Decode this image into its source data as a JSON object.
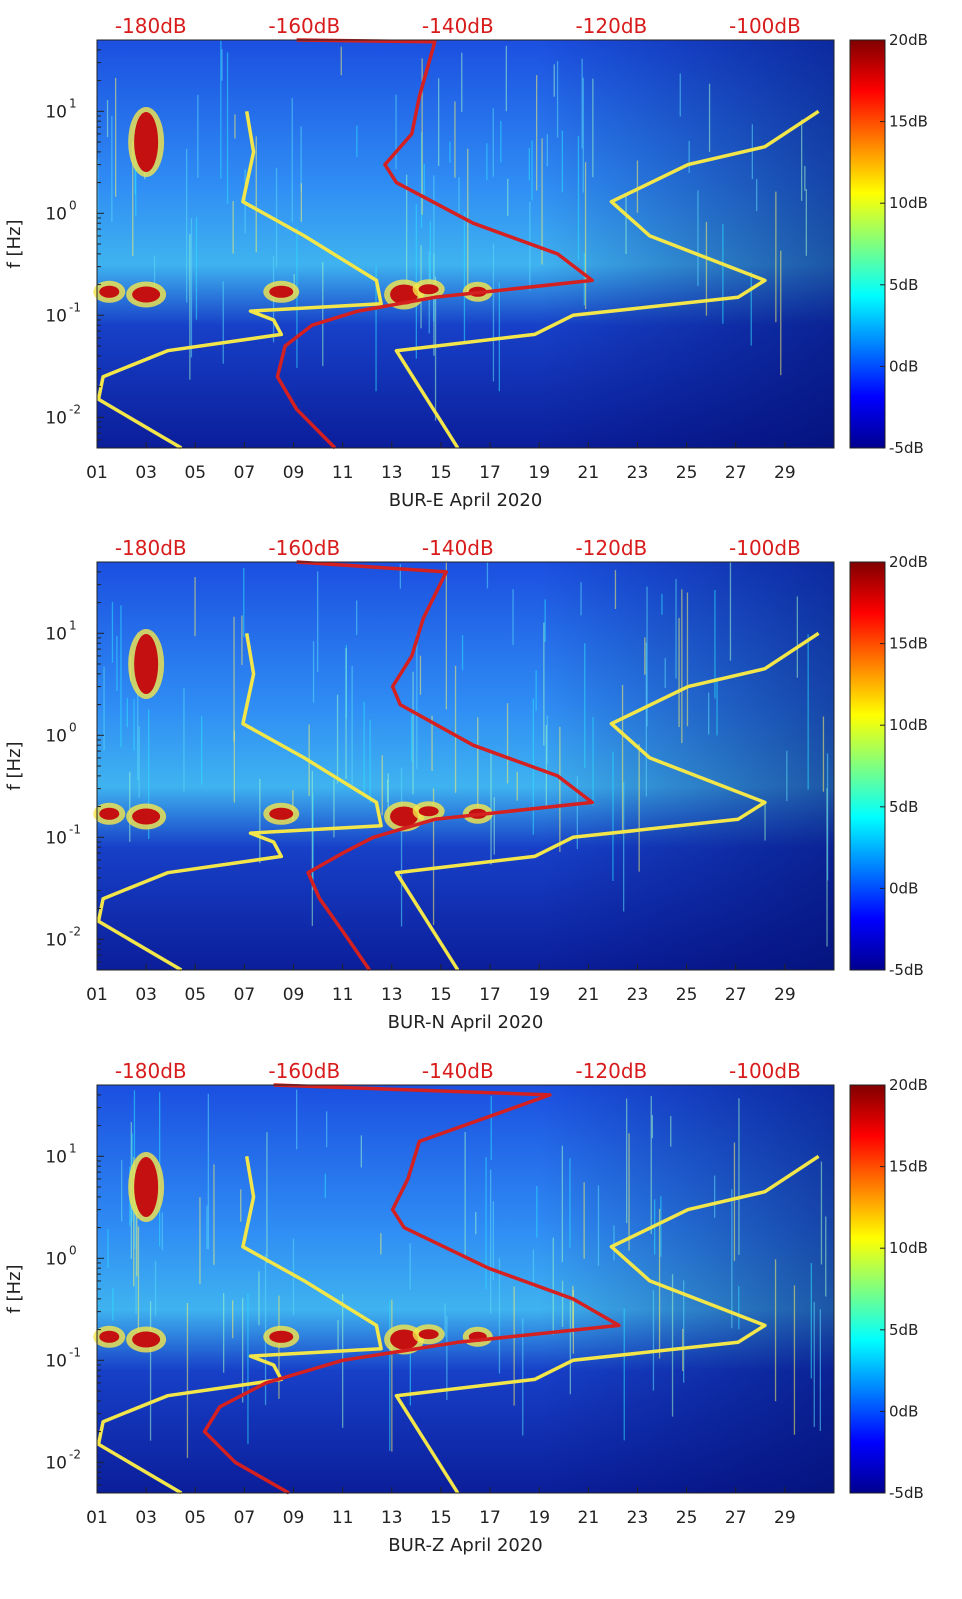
{
  "figure": {
    "panels": [
      {
        "x_label": "BUR-E April 2020",
        "y_label": "f [Hz]"
      },
      {
        "x_label": "BUR-N April 2020",
        "y_label": "f [Hz]"
      },
      {
        "x_label": "BUR-Z April 2020",
        "y_label": "f [Hz]"
      }
    ]
  },
  "chart_data": [
    {
      "type": "heatmap",
      "station": "BUR-E",
      "xlabel": "BUR-E April 2020",
      "ylabel": "f [Hz]",
      "x_ticks": [
        "01",
        "03",
        "05",
        "07",
        "09",
        "11",
        "13",
        "15",
        "17",
        "19",
        "21",
        "23",
        "25",
        "27",
        "29"
      ],
      "y_ticks": [
        "10^-2",
        "10^-1",
        "10^0",
        "10^1"
      ],
      "y_scale": "log",
      "ylim": [
        0.005,
        50
      ],
      "xlim": [
        1,
        31
      ],
      "top_axis_ticks": [
        "-180dB",
        "-160dB",
        "-140dB",
        "-120dB",
        "-100dB"
      ],
      "top_axis_range": [
        -187,
        -91
      ],
      "colorbar": {
        "ticks": [
          "20dB",
          "15dB",
          "10dB",
          "5dB",
          "0dB",
          "-5dB"
        ],
        "range": [
          -5,
          20
        ],
        "colormap": "jet"
      },
      "series": [
        {
          "color": "#f2e64a",
          "points": [
            [
              0.005,
              -176.0
            ],
            [
              0.015,
              -186.8
            ],
            [
              0.025,
              -186.2
            ],
            [
              0.045,
              -177.8
            ],
            [
              0.065,
              -163.0
            ],
            [
              0.09,
              -164.0
            ],
            [
              0.11,
              -167.0
            ],
            [
              0.13,
              -150.0
            ],
            [
              0.22,
              -150.6
            ],
            [
              0.6,
              -160.0
            ],
            [
              1.3,
              -168.0
            ],
            [
              4.0,
              -166.6
            ],
            [
              10.0,
              -167.5
            ]
          ]
        },
        {
          "color": "#f2e64a",
          "points": [
            [
              0.005,
              -140.0
            ],
            [
              0.045,
              -148.0
            ],
            [
              0.065,
              -130.0
            ],
            [
              0.1,
              -125.0
            ],
            [
              0.15,
              -103.5
            ],
            [
              0.22,
              -100.0
            ],
            [
              0.6,
              -115.0
            ],
            [
              1.3,
              -120.0
            ],
            [
              3.0,
              -110.0
            ],
            [
              4.5,
              -100.0
            ],
            [
              10.0,
              -93.0
            ]
          ]
        },
        {
          "color": "#d42020",
          "points": [
            [
              0.005,
              -156.0
            ],
            [
              0.012,
              -161.0
            ],
            [
              0.025,
              -163.5
            ],
            [
              0.05,
              -162.5
            ],
            [
              0.08,
              -159.0
            ],
            [
              0.11,
              -153.0
            ],
            [
              0.15,
              -143.0
            ],
            [
              0.22,
              -122.5
            ],
            [
              0.4,
              -127.0
            ],
            [
              0.8,
              -138.0
            ],
            [
              2.0,
              -148.0
            ],
            [
              3.0,
              -149.5
            ],
            [
              6.0,
              -146.0
            ],
            [
              14.0,
              -145.0
            ],
            [
              48.0,
              -143.0
            ],
            [
              50.0,
              -161.0
            ]
          ]
        }
      ]
    },
    {
      "type": "heatmap",
      "station": "BUR-N",
      "xlabel": "BUR-N April 2020",
      "ylabel": "f [Hz]",
      "x_ticks": [
        "01",
        "03",
        "05",
        "07",
        "09",
        "11",
        "13",
        "15",
        "17",
        "19",
        "21",
        "23",
        "25",
        "27",
        "29"
      ],
      "y_ticks": [
        "10^-2",
        "10^-1",
        "10^0",
        "10^1"
      ],
      "y_scale": "log",
      "ylim": [
        0.005,
        50
      ],
      "xlim": [
        1,
        31
      ],
      "top_axis_ticks": [
        "-180dB",
        "-160dB",
        "-140dB",
        "-120dB",
        "-100dB"
      ],
      "top_axis_range": [
        -187,
        -91
      ],
      "colorbar": {
        "ticks": [
          "20dB",
          "15dB",
          "10dB",
          "5dB",
          "0dB",
          "-5dB"
        ],
        "range": [
          -5,
          20
        ],
        "colormap": "jet"
      },
      "series": [
        {
          "color": "#f2e64a",
          "points": [
            [
              0.005,
              -176.0
            ],
            [
              0.015,
              -186.8
            ],
            [
              0.025,
              -186.2
            ],
            [
              0.045,
              -177.8
            ],
            [
              0.065,
              -163.0
            ],
            [
              0.09,
              -164.0
            ],
            [
              0.11,
              -167.0
            ],
            [
              0.13,
              -150.0
            ],
            [
              0.22,
              -150.6
            ],
            [
              0.6,
              -160.0
            ],
            [
              1.3,
              -168.0
            ],
            [
              4.0,
              -166.6
            ],
            [
              10.0,
              -167.5
            ]
          ]
        },
        {
          "color": "#f2e64a",
          "points": [
            [
              0.005,
              -140.0
            ],
            [
              0.045,
              -148.0
            ],
            [
              0.065,
              -130.0
            ],
            [
              0.1,
              -125.0
            ],
            [
              0.15,
              -103.5
            ],
            [
              0.22,
              -100.0
            ],
            [
              0.6,
              -115.0
            ],
            [
              1.3,
              -120.0
            ],
            [
              3.0,
              -110.0
            ],
            [
              4.5,
              -100.0
            ],
            [
              10.0,
              -93.0
            ]
          ]
        },
        {
          "color": "#d42020",
          "points": [
            [
              0.005,
              -151.5
            ],
            [
              0.012,
              -155.0
            ],
            [
              0.025,
              -158.0
            ],
            [
              0.045,
              -159.5
            ],
            [
              0.07,
              -155.0
            ],
            [
              0.1,
              -151.0
            ],
            [
              0.15,
              -143.0
            ],
            [
              0.22,
              -122.5
            ],
            [
              0.4,
              -127.0
            ],
            [
              0.8,
              -138.0
            ],
            [
              2.0,
              -147.5
            ],
            [
              3.0,
              -148.5
            ],
            [
              6.0,
              -146.0
            ],
            [
              14.0,
              -144.5
            ],
            [
              40.0,
              -141.5
            ],
            [
              50.0,
              -161.0
            ]
          ]
        }
      ]
    },
    {
      "type": "heatmap",
      "station": "BUR-Z",
      "xlabel": "BUR-Z April 2020",
      "ylabel": "f [Hz]",
      "x_ticks": [
        "01",
        "03",
        "05",
        "07",
        "09",
        "11",
        "13",
        "15",
        "17",
        "19",
        "21",
        "23",
        "25",
        "27",
        "29"
      ],
      "y_ticks": [
        "10^-2",
        "10^-1",
        "10^0",
        "10^1"
      ],
      "y_scale": "log",
      "ylim": [
        0.005,
        50
      ],
      "xlim": [
        1,
        31
      ],
      "top_axis_ticks": [
        "-180dB",
        "-160dB",
        "-140dB",
        "-120dB",
        "-100dB"
      ],
      "top_axis_range": [
        -187,
        -91
      ],
      "colorbar": {
        "ticks": [
          "20dB",
          "15dB",
          "10dB",
          "5dB",
          "0dB",
          "-5dB"
        ],
        "range": [
          -5,
          20
        ],
        "colormap": "jet"
      },
      "series": [
        {
          "color": "#f2e64a",
          "points": [
            [
              0.005,
              -176.0
            ],
            [
              0.015,
              -186.8
            ],
            [
              0.025,
              -186.2
            ],
            [
              0.045,
              -177.8
            ],
            [
              0.065,
              -163.0
            ],
            [
              0.09,
              -164.0
            ],
            [
              0.11,
              -167.0
            ],
            [
              0.13,
              -150.0
            ],
            [
              0.22,
              -150.6
            ],
            [
              0.6,
              -160.0
            ],
            [
              1.3,
              -168.0
            ],
            [
              4.0,
              -166.6
            ],
            [
              10.0,
              -167.5
            ]
          ]
        },
        {
          "color": "#f2e64a",
          "points": [
            [
              0.005,
              -140.0
            ],
            [
              0.045,
              -148.0
            ],
            [
              0.065,
              -130.0
            ],
            [
              0.1,
              -125.0
            ],
            [
              0.15,
              -103.5
            ],
            [
              0.22,
              -100.0
            ],
            [
              0.6,
              -115.0
            ],
            [
              1.3,
              -120.0
            ],
            [
              3.0,
              -110.0
            ],
            [
              4.5,
              -100.0
            ],
            [
              10.0,
              -93.0
            ]
          ]
        },
        {
          "color": "#d42020",
          "points": [
            [
              0.005,
              -162.0
            ],
            [
              0.01,
              -169.0
            ],
            [
              0.02,
              -173.0
            ],
            [
              0.035,
              -171.0
            ],
            [
              0.06,
              -165.0
            ],
            [
              0.1,
              -155.0
            ],
            [
              0.15,
              -140.0
            ],
            [
              0.22,
              -119.0
            ],
            [
              0.4,
              -125.0
            ],
            [
              0.8,
              -136.0
            ],
            [
              2.0,
              -147.0
            ],
            [
              3.0,
              -148.5
            ],
            [
              6.0,
              -146.5
            ],
            [
              14.0,
              -145.0
            ],
            [
              40.0,
              -128.0
            ],
            [
              50.0,
              -164.0
            ]
          ]
        }
      ]
    }
  ]
}
